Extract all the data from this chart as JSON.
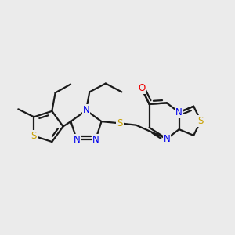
{
  "background_color": "#ebebeb",
  "bond_color": "#1a1a1a",
  "bond_width": 1.6,
  "atom_colors": {
    "S": "#c8a000",
    "N": "#0000ee",
    "O": "#ee0000",
    "C": "#1a1a1a"
  },
  "font_size_atom": 8.5,
  "dbo": 0.018
}
